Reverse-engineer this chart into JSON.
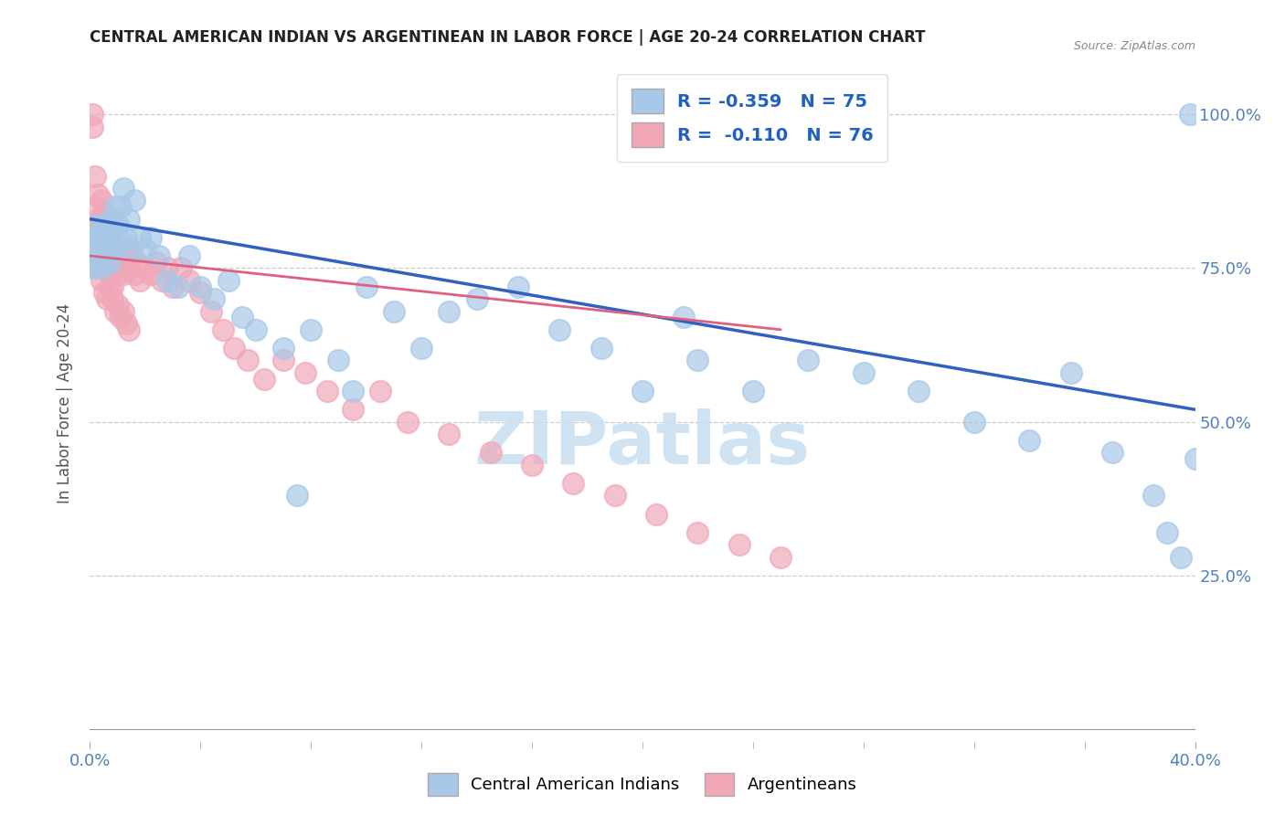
{
  "title": "CENTRAL AMERICAN INDIAN VS ARGENTINEAN IN LABOR FORCE | AGE 20-24 CORRELATION CHART",
  "source": "Source: ZipAtlas.com",
  "ylabel": "In Labor Force | Age 20-24",
  "R_blue": -0.359,
  "N_blue": 75,
  "R_pink": -0.11,
  "N_pink": 76,
  "blue_color": "#a8c8e8",
  "pink_color": "#f0a8b8",
  "blue_line_color": "#3060c0",
  "pink_line_color": "#e06080",
  "legend_text_color": "#2060c0",
  "axis_color": "#5080c0",
  "watermark_text": "ZIPatlas",
  "watermark_color": "#c8dff0",
  "xlim": [
    0.0,
    0.4
  ],
  "ylim": [
    -0.02,
    1.08
  ],
  "ytick_positions": [
    0.25,
    0.5,
    0.75,
    1.0
  ],
  "ytick_labels": [
    "25.0%",
    "50.0%",
    "75.0%",
    "100.0%"
  ],
  "xtick_left_label": "0.0%",
  "xtick_right_label": "40.0%",
  "background_color": "#ffffff",
  "grid_color": "#cccccc",
  "blue_scatter_x": [
    0.001,
    0.001,
    0.002,
    0.002,
    0.002,
    0.003,
    0.003,
    0.003,
    0.004,
    0.004,
    0.004,
    0.004,
    0.005,
    0.005,
    0.005,
    0.006,
    0.006,
    0.006,
    0.007,
    0.007,
    0.007,
    0.008,
    0.008,
    0.008,
    0.009,
    0.009,
    0.01,
    0.01,
    0.011,
    0.012,
    0.013,
    0.014,
    0.015,
    0.016,
    0.018,
    0.02,
    0.022,
    0.025,
    0.028,
    0.032,
    0.036,
    0.04,
    0.045,
    0.05,
    0.055,
    0.06,
    0.07,
    0.08,
    0.09,
    0.1,
    0.11,
    0.12,
    0.14,
    0.155,
    0.17,
    0.185,
    0.2,
    0.22,
    0.24,
    0.26,
    0.28,
    0.3,
    0.32,
    0.34,
    0.355,
    0.37,
    0.385,
    0.39,
    0.395,
    0.398,
    0.4,
    0.215,
    0.13,
    0.095,
    0.075
  ],
  "blue_scatter_y": [
    0.77,
    0.75,
    0.8,
    0.78,
    0.76,
    0.82,
    0.8,
    0.78,
    0.81,
    0.79,
    0.77,
    0.75,
    0.8,
    0.78,
    0.76,
    0.82,
    0.8,
    0.78,
    0.8,
    0.78,
    0.76,
    0.83,
    0.81,
    0.79,
    0.85,
    0.78,
    0.82,
    0.8,
    0.85,
    0.88,
    0.8,
    0.83,
    0.78,
    0.86,
    0.8,
    0.78,
    0.8,
    0.77,
    0.73,
    0.72,
    0.77,
    0.72,
    0.7,
    0.73,
    0.67,
    0.65,
    0.62,
    0.65,
    0.6,
    0.72,
    0.68,
    0.62,
    0.7,
    0.72,
    0.65,
    0.62,
    0.55,
    0.6,
    0.55,
    0.6,
    0.58,
    0.55,
    0.5,
    0.47,
    0.58,
    0.45,
    0.38,
    0.32,
    0.28,
    1.0,
    0.44,
    0.67,
    0.68,
    0.55,
    0.38
  ],
  "pink_scatter_x": [
    0.001,
    0.001,
    0.002,
    0.002,
    0.002,
    0.003,
    0.003,
    0.003,
    0.004,
    0.004,
    0.004,
    0.005,
    0.005,
    0.005,
    0.006,
    0.006,
    0.006,
    0.007,
    0.007,
    0.007,
    0.008,
    0.008,
    0.008,
    0.009,
    0.009,
    0.01,
    0.01,
    0.011,
    0.012,
    0.013,
    0.014,
    0.015,
    0.016,
    0.017,
    0.018,
    0.02,
    0.022,
    0.024,
    0.026,
    0.028,
    0.03,
    0.033,
    0.036,
    0.04,
    0.044,
    0.048,
    0.052,
    0.057,
    0.063,
    0.07,
    0.078,
    0.086,
    0.095,
    0.105,
    0.115,
    0.13,
    0.145,
    0.16,
    0.175,
    0.19,
    0.205,
    0.22,
    0.235,
    0.25,
    0.003,
    0.004,
    0.005,
    0.006,
    0.007,
    0.008,
    0.009,
    0.01,
    0.011,
    0.012,
    0.013,
    0.014
  ],
  "pink_scatter_y": [
    1.0,
    0.98,
    0.9,
    0.85,
    0.82,
    0.87,
    0.83,
    0.8,
    0.86,
    0.82,
    0.79,
    0.84,
    0.8,
    0.77,
    0.82,
    0.78,
    0.75,
    0.8,
    0.76,
    0.74,
    0.78,
    0.75,
    0.72,
    0.78,
    0.76,
    0.77,
    0.74,
    0.76,
    0.74,
    0.78,
    0.75,
    0.77,
    0.74,
    0.76,
    0.73,
    0.75,
    0.74,
    0.76,
    0.73,
    0.75,
    0.72,
    0.75,
    0.73,
    0.71,
    0.68,
    0.65,
    0.62,
    0.6,
    0.57,
    0.6,
    0.58,
    0.55,
    0.52,
    0.55,
    0.5,
    0.48,
    0.45,
    0.43,
    0.4,
    0.38,
    0.35,
    0.32,
    0.3,
    0.28,
    0.75,
    0.73,
    0.71,
    0.7,
    0.72,
    0.7,
    0.68,
    0.69,
    0.67,
    0.68,
    0.66,
    0.65
  ],
  "blue_line_x0": 0.0,
  "blue_line_y0": 0.83,
  "blue_line_x1": 0.4,
  "blue_line_y1": 0.52,
  "pink_line_x0": 0.0,
  "pink_line_y0": 0.77,
  "pink_line_x1": 0.25,
  "pink_line_y1": 0.65
}
